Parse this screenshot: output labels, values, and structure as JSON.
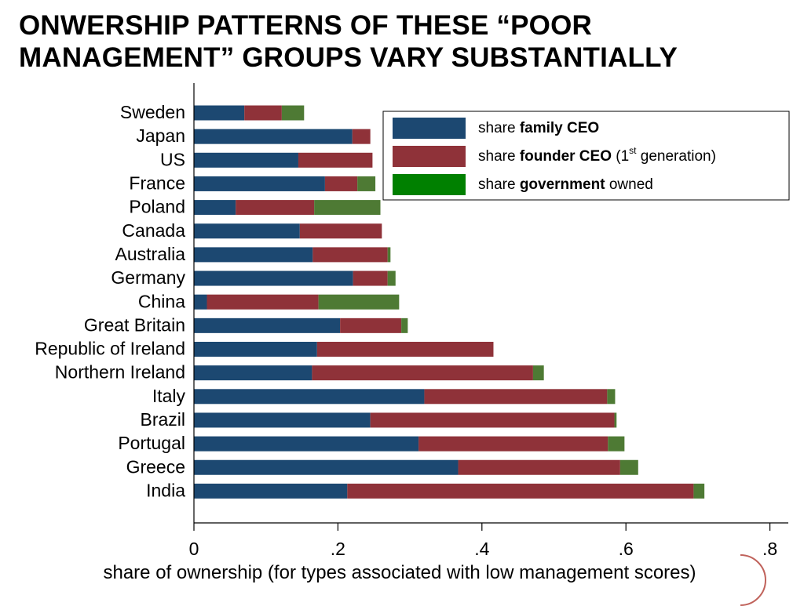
{
  "slide": {
    "title_line1": "ONWERSHIP PATTERNS OF THESE “POOR",
    "title_line2": "MANAGEMENT” GROUPS VARY SUBSTANTIALLY"
  },
  "colors": {
    "family": "#1c4871",
    "founder": "#8f3239",
    "government": "#4e7a34",
    "legend_government": "#008000",
    "seal": "#b5463e"
  },
  "chart_data": {
    "type": "bar",
    "orientation": "horizontal",
    "stacked": true,
    "title": "",
    "xlabel": "share of ownership (for types associated with low management scores)",
    "ylabel": "",
    "xlim": [
      0,
      0.84
    ],
    "xticks": [
      0,
      0.2,
      0.4,
      0.6,
      0.8
    ],
    "xtick_labels": [
      "0",
      ".2",
      ".4",
      ".6",
      ".8"
    ],
    "grid": false,
    "legend_position": "top-right",
    "categories": [
      "Sweden",
      "Japan",
      "US",
      "France",
      "Poland",
      "Canada",
      "Australia",
      "Germany",
      "China",
      "Great Britain",
      "Republic of Ireland",
      "Northern Ireland",
      "Italy",
      "Brazil",
      "Portugal",
      "Greece",
      "India"
    ],
    "series": [
      {
        "name": "share family CEO",
        "legend_prefix": "share ",
        "legend_bold": "family CEO",
        "legend_suffix": "",
        "values": [
          0.07,
          0.22,
          0.145,
          0.182,
          0.058,
          0.147,
          0.165,
          0.221,
          0.018,
          0.203,
          0.171,
          0.164,
          0.32,
          0.245,
          0.312,
          0.367,
          0.213
        ]
      },
      {
        "name": "share founder CEO (1st generation)",
        "legend_prefix": "share ",
        "legend_bold": "founder CEO",
        "legend_suffix": " (1",
        "legend_sup": "st",
        "legend_suffix2": " generation)",
        "values": [
          0.052,
          0.025,
          0.103,
          0.045,
          0.109,
          0.114,
          0.104,
          0.048,
          0.155,
          0.085,
          0.245,
          0.307,
          0.254,
          0.339,
          0.263,
          0.225,
          0.481
        ]
      },
      {
        "name": "share government owned",
        "legend_prefix": "share ",
        "legend_bold": "government",
        "legend_suffix": " owned",
        "values": [
          0.031,
          0.0,
          0.0,
          0.025,
          0.092,
          0.0,
          0.004,
          0.011,
          0.112,
          0.009,
          0.0,
          0.015,
          0.011,
          0.003,
          0.023,
          0.025,
          0.015
        ]
      }
    ]
  }
}
